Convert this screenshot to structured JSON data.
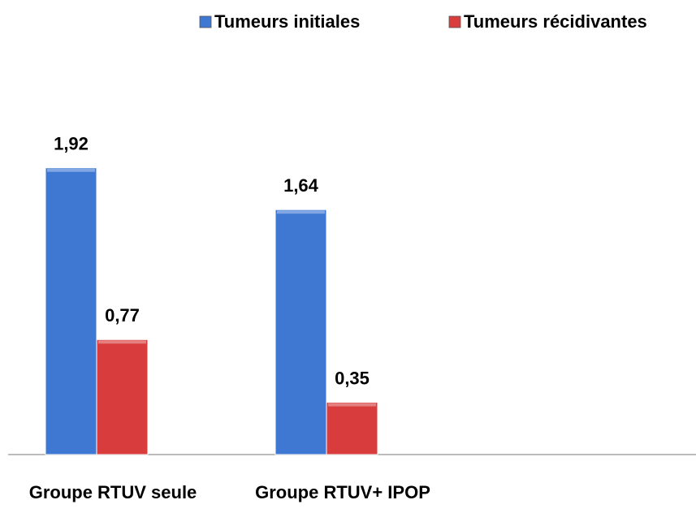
{
  "chart_data": {
    "type": "bar",
    "categories": [
      "Groupe RTUV seule",
      "Groupe RTUV+ IPOP"
    ],
    "series": [
      {
        "name": "Tumeurs initiales",
        "color": "#3f78d3",
        "values": [
          1.92,
          1.64
        ],
        "value_labels": [
          "1,92",
          "1,64"
        ]
      },
      {
        "name": "Tumeurs récidivantes",
        "color": "#d83c3c",
        "values": [
          0.77,
          0.35
        ],
        "value_labels": [
          "0,77",
          "0,35"
        ]
      }
    ],
    "legend": "top-right"
  }
}
